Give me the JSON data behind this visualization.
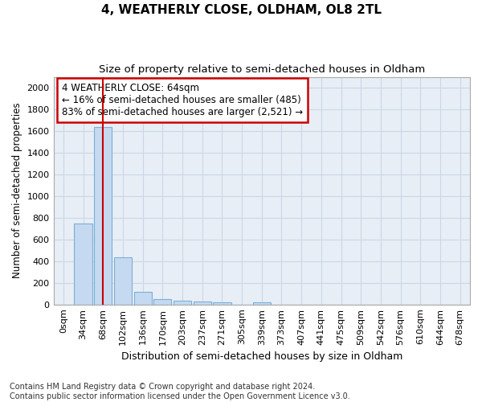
{
  "title1": "4, WEATHERLY CLOSE, OLDHAM, OL8 2TL",
  "title2": "Size of property relative to semi-detached houses in Oldham",
  "xlabel": "Distribution of semi-detached houses by size in Oldham",
  "ylabel": "Number of semi-detached properties",
  "bar_labels": [
    "0sqm",
    "34sqm",
    "68sqm",
    "102sqm",
    "136sqm",
    "170sqm",
    "203sqm",
    "237sqm",
    "271sqm",
    "305sqm",
    "339sqm",
    "373sqm",
    "407sqm",
    "441sqm",
    "475sqm",
    "509sqm",
    "542sqm",
    "576sqm",
    "610sqm",
    "644sqm",
    "678sqm"
  ],
  "bar_values": [
    0,
    750,
    1635,
    435,
    115,
    50,
    35,
    25,
    20,
    0,
    20,
    0,
    0,
    0,
    0,
    0,
    0,
    0,
    0,
    0,
    0
  ],
  "bar_color": "#c5d9f0",
  "bar_edge_color": "#7ab0d8",
  "property_line_x": 1.98,
  "annotation_title": "4 WEATHERLY CLOSE: 64sqm",
  "annotation_line2": "← 16% of semi-detached houses are smaller (485)",
  "annotation_line3": "83% of semi-detached houses are larger (2,521) →",
  "annotation_box_color": "#ffffff",
  "annotation_box_edge_color": "#cc0000",
  "red_line_color": "#cc0000",
  "grid_color": "#c8d8e8",
  "bg_color": "#e8eef5",
  "ylim": [
    0,
    2100
  ],
  "yticks": [
    0,
    200,
    400,
    600,
    800,
    1000,
    1200,
    1400,
    1600,
    1800,
    2000
  ],
  "footnote": "Contains HM Land Registry data © Crown copyright and database right 2024.\nContains public sector information licensed under the Open Government Licence v3.0.",
  "title1_fontsize": 11,
  "title2_fontsize": 9.5,
  "xlabel_fontsize": 9,
  "ylabel_fontsize": 8.5,
  "tick_fontsize": 8,
  "annotation_fontsize": 8.5,
  "footnote_fontsize": 7
}
